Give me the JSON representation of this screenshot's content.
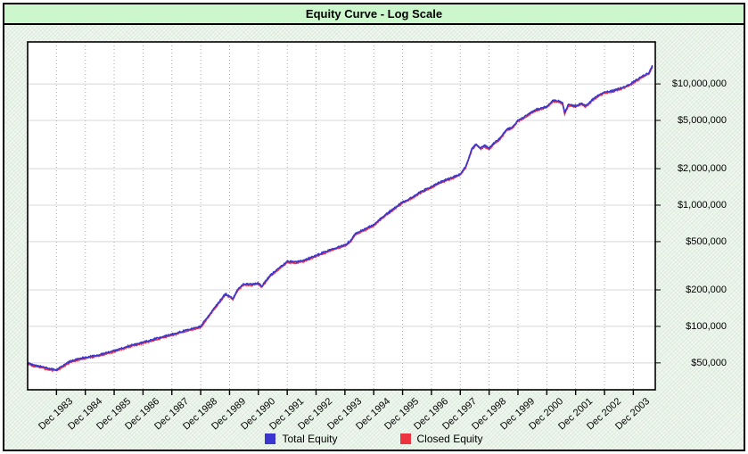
{
  "window": {
    "title": "Equity Curve - Log Scale"
  },
  "legend": {
    "items": [
      {
        "label": "Total Equity",
        "color": "#3a35cf"
      },
      {
        "label": "Closed Equity",
        "color": "#ee3340"
      }
    ]
  },
  "chart_data": {
    "type": "line",
    "title": "Equity Curve - Log Scale",
    "y_scale": "log",
    "ylabel": "",
    "xlabel": "",
    "ylim": [
      30000,
      22200000
    ],
    "x_unit": "years since Dec 1982",
    "xlim": [
      0,
      21.73
    ],
    "grid": {
      "horizontal": "solid",
      "vertical": "dotted"
    },
    "y_ticks": [
      {
        "value": 10000000,
        "label": "$10,000,000"
      },
      {
        "value": 5000000,
        "label": "$5,000,000"
      },
      {
        "value": 2000000,
        "label": "$2,000,000"
      },
      {
        "value": 1000000,
        "label": "$1,000,000"
      },
      {
        "value": 500000,
        "label": "$500,000"
      },
      {
        "value": 200000,
        "label": "$200,000"
      },
      {
        "value": 100000,
        "label": "$100,000"
      },
      {
        "value": 50000,
        "label": "$50,000"
      }
    ],
    "x_ticks": [
      {
        "u": 1,
        "label": "Dec 1983"
      },
      {
        "u": 2,
        "label": "Dec 1984"
      },
      {
        "u": 3,
        "label": "Dec 1985"
      },
      {
        "u": 4,
        "label": "Dec 1986"
      },
      {
        "u": 5,
        "label": "Dec 1987"
      },
      {
        "u": 6,
        "label": "Dec 1988"
      },
      {
        "u": 7,
        "label": "Dec 1989"
      },
      {
        "u": 8,
        "label": "Dec 1990"
      },
      {
        "u": 9,
        "label": "Dec 1991"
      },
      {
        "u": 10,
        "label": "Dec 1992"
      },
      {
        "u": 11,
        "label": "Dec 1993"
      },
      {
        "u": 12,
        "label": "Dec 1994"
      },
      {
        "u": 13,
        "label": "Dec 1995"
      },
      {
        "u": 14,
        "label": "Dec 1996"
      },
      {
        "u": 15,
        "label": "Dec 1997"
      },
      {
        "u": 16,
        "label": "Dec 1998"
      },
      {
        "u": 17,
        "label": "Dec 1999"
      },
      {
        "u": 18,
        "label": "Dec 2000"
      },
      {
        "u": 19,
        "label": "Dec 2001"
      },
      {
        "u": 20,
        "label": "Dec 2002"
      },
      {
        "u": 21,
        "label": "Dec 2003"
      }
    ],
    "series": [
      {
        "name": "Total Equity",
        "color": "#3a35cf",
        "points": [
          [
            0,
            50000
          ],
          [
            0.25,
            47500
          ],
          [
            0.5,
            46500
          ],
          [
            0.75,
            44800
          ],
          [
            1,
            44000
          ],
          [
            1.2,
            47000
          ],
          [
            1.5,
            52000
          ],
          [
            2,
            55500
          ],
          [
            2.5,
            58500
          ],
          [
            3,
            63000
          ],
          [
            3.5,
            69000
          ],
          [
            4,
            74000
          ],
          [
            4.5,
            80000
          ],
          [
            5,
            86000
          ],
          [
            5.5,
            93000
          ],
          [
            6,
            100000
          ],
          [
            6.3,
            125000
          ],
          [
            6.6,
            155000
          ],
          [
            6.85,
            185000
          ],
          [
            7,
            178000
          ],
          [
            7.12,
            170000
          ],
          [
            7.3,
            205000
          ],
          [
            7.5,
            225000
          ],
          [
            7.8,
            222000
          ],
          [
            8,
            228000
          ],
          [
            8.12,
            215000
          ],
          [
            8.4,
            262000
          ],
          [
            8.7,
            300000
          ],
          [
            9,
            344000
          ],
          [
            9.3,
            340000
          ],
          [
            9.6,
            352000
          ],
          [
            10,
            385000
          ],
          [
            10.5,
            430000
          ],
          [
            11,
            470000
          ],
          [
            11.2,
            510000
          ],
          [
            11.35,
            580000
          ],
          [
            11.6,
            620000
          ],
          [
            12,
            690000
          ],
          [
            12.3,
            800000
          ],
          [
            12.6,
            900000
          ],
          [
            12.8,
            980000
          ],
          [
            13,
            1060000
          ],
          [
            13.3,
            1150000
          ],
          [
            13.6,
            1280000
          ],
          [
            14,
            1420000
          ],
          [
            14.3,
            1550000
          ],
          [
            14.6,
            1650000
          ],
          [
            15,
            1800000
          ],
          [
            15.2,
            2100000
          ],
          [
            15.4,
            2900000
          ],
          [
            15.55,
            3200000
          ],
          [
            15.7,
            2950000
          ],
          [
            15.85,
            3100000
          ],
          [
            16,
            2950000
          ],
          [
            16.2,
            3300000
          ],
          [
            16.4,
            3600000
          ],
          [
            16.6,
            4200000
          ],
          [
            16.8,
            4400000
          ],
          [
            17,
            5000000
          ],
          [
            17.3,
            5500000
          ],
          [
            17.6,
            6100000
          ],
          [
            18,
            6500000
          ],
          [
            18.2,
            7300000
          ],
          [
            18.45,
            7200000
          ],
          [
            18.55,
            6900000
          ],
          [
            18.62,
            5800000
          ],
          [
            18.75,
            6750000
          ],
          [
            19,
            6600000
          ],
          [
            19.2,
            6900000
          ],
          [
            19.35,
            6600000
          ],
          [
            19.6,
            7500000
          ],
          [
            19.8,
            8100000
          ],
          [
            20,
            8550000
          ],
          [
            20.3,
            8800000
          ],
          [
            20.6,
            9300000
          ],
          [
            20.85,
            9800000
          ],
          [
            21,
            10400000
          ],
          [
            21.3,
            11500000
          ],
          [
            21.55,
            12400000
          ],
          [
            21.67,
            14200000
          ]
        ]
      },
      {
        "name": "Closed Equity",
        "color": "#ee3340",
        "coincides_with": "Total Equity",
        "points": []
      }
    ]
  }
}
